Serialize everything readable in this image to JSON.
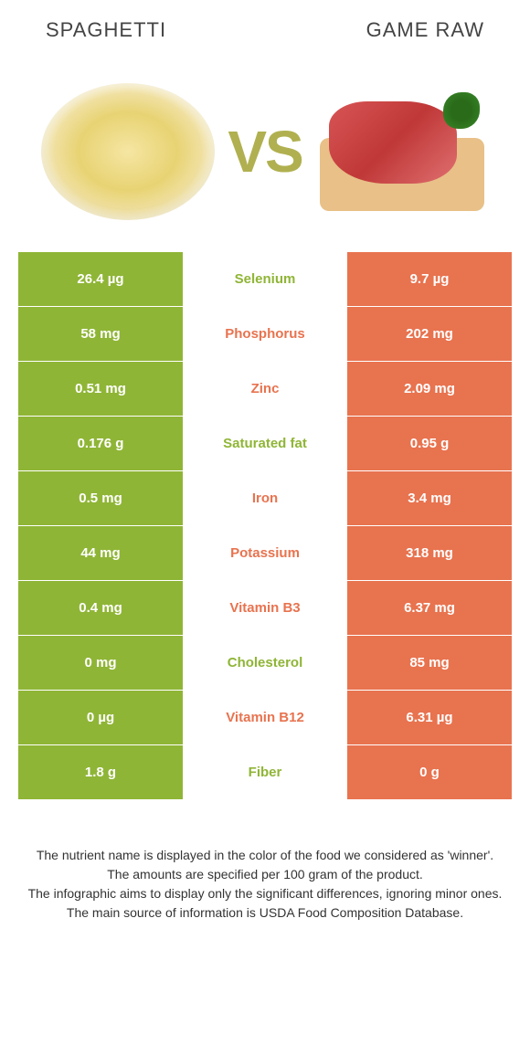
{
  "header": {
    "left_title": "Spaghetti",
    "right_title": "Game Raw"
  },
  "vs_label": "VS",
  "colors": {
    "spaghetti_bg": "#8fb536",
    "game_bg": "#e8734f",
    "spaghetti_text": "#8fb536",
    "game_text": "#e8734f"
  },
  "rows": [
    {
      "left": "26.4 µg",
      "name": "Selenium",
      "right": "9.7 µg",
      "winner": "left"
    },
    {
      "left": "58 mg",
      "name": "Phosphorus",
      "right": "202 mg",
      "winner": "right"
    },
    {
      "left": "0.51 mg",
      "name": "Zinc",
      "right": "2.09 mg",
      "winner": "right"
    },
    {
      "left": "0.176 g",
      "name": "Saturated fat",
      "right": "0.95 g",
      "winner": "left"
    },
    {
      "left": "0.5 mg",
      "name": "Iron",
      "right": "3.4 mg",
      "winner": "right"
    },
    {
      "left": "44 mg",
      "name": "Potassium",
      "right": "318 mg",
      "winner": "right"
    },
    {
      "left": "0.4 mg",
      "name": "Vitamin B3",
      "right": "6.37 mg",
      "winner": "right"
    },
    {
      "left": "0 mg",
      "name": "Cholesterol",
      "right": "85 mg",
      "winner": "left"
    },
    {
      "left": "0 µg",
      "name": "Vitamin B12",
      "right": "6.31 µg",
      "winner": "right"
    },
    {
      "left": "1.8 g",
      "name": "Fiber",
      "right": "0 g",
      "winner": "left"
    }
  ],
  "footer": {
    "line1": "The nutrient name is displayed in the color of the food we considered as 'winner'.",
    "line2": "The amounts are specified per 100 gram of the product.",
    "line3": "The infographic aims to display only the significant differences, ignoring minor ones.",
    "line4": "The main source of information is USDA Food Composition Database."
  }
}
